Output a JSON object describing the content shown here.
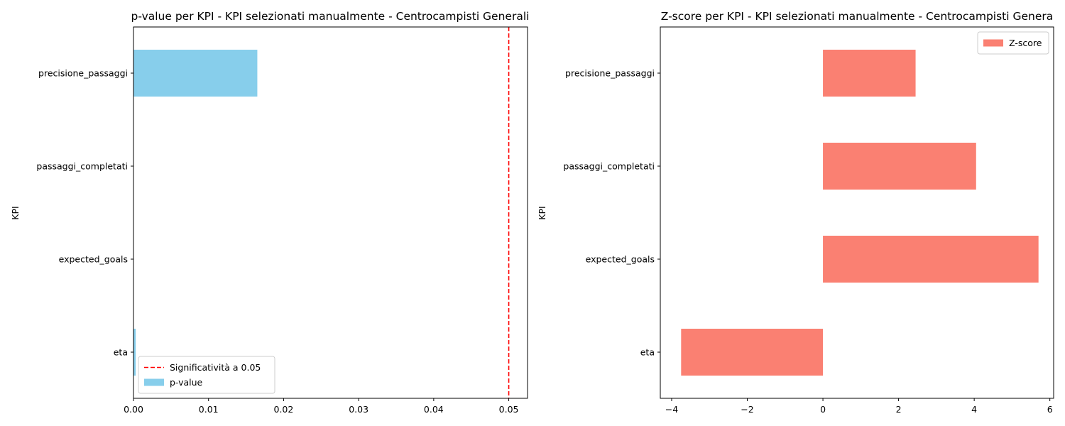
{
  "chart_data": [
    {
      "type": "bar",
      "orientation": "horizontal",
      "title": "p-value per KPI - KPI selezionati manualmente - Centrocampisti Generali",
      "xlabel": "",
      "ylabel": "KPI",
      "categories": [
        "eta",
        "expected_goals",
        "passaggi_completati",
        "precisione_passaggi"
      ],
      "series": [
        {
          "name": "p-value",
          "color": "#87CEEB",
          "values": [
            0.0003,
            0.0,
            0.0,
            0.0165
          ]
        }
      ],
      "reference_line": {
        "name": "Significatività a 0.05",
        "value": 0.05,
        "color": "#FF0000",
        "style": "dashed"
      },
      "xlim": [
        0,
        0.0525
      ],
      "xticks": [
        0,
        0.01,
        0.02,
        0.03,
        0.04,
        0.05
      ],
      "xtick_labels": [
        "0.00",
        "0.01",
        "0.02",
        "0.03",
        "0.04",
        "0.05"
      ],
      "legend": "lower-left",
      "grid": false
    },
    {
      "type": "bar",
      "orientation": "horizontal",
      "title": "Z-score per KPI - KPI selezionati manualmente - Centrocampisti Genera",
      "xlabel": "",
      "ylabel": "KPI",
      "categories": [
        "eta",
        "expected_goals",
        "passaggi_completati",
        "precisione_passaggi"
      ],
      "series": [
        {
          "name": "Z-score",
          "color": "#FA8072",
          "values": [
            -3.75,
            5.7,
            4.05,
            2.45
          ]
        }
      ],
      "xlim": [
        -4.3,
        6.1
      ],
      "xticks": [
        -4,
        -2,
        0,
        2,
        4,
        6
      ],
      "xtick_labels": [
        "−4",
        "−2",
        "0",
        "2",
        "4",
        "6"
      ],
      "legend": "top-right",
      "grid": false
    }
  ]
}
